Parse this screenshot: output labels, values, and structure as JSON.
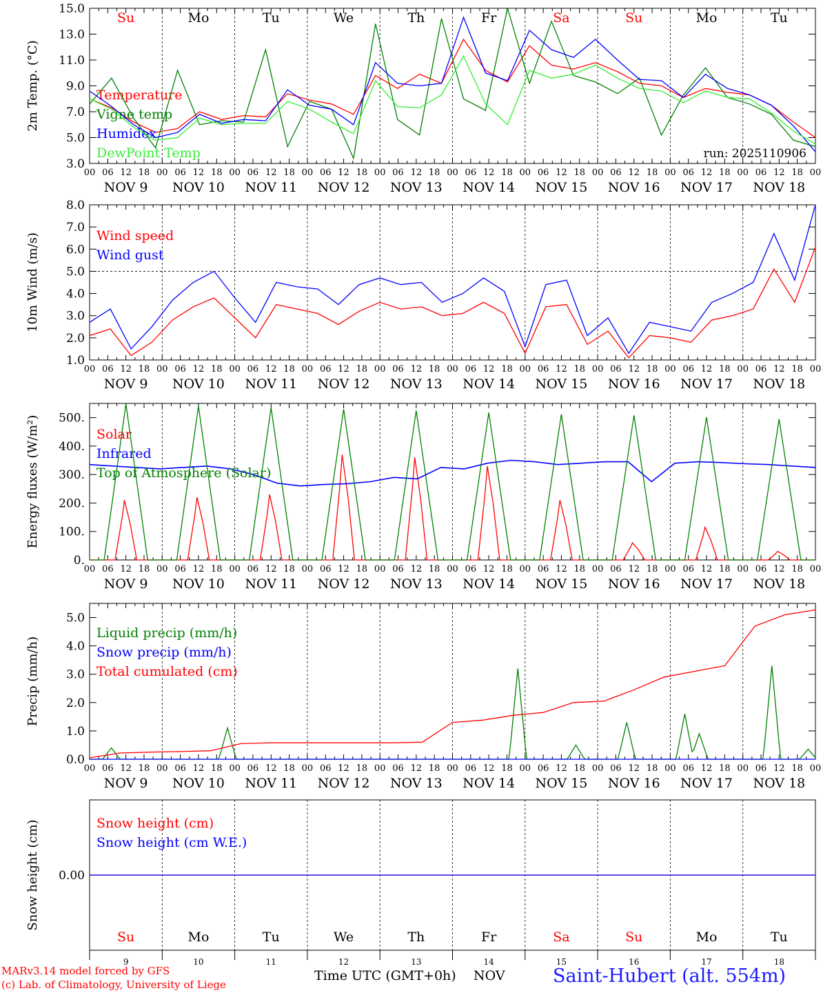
{
  "chart_data": {
    "type": "line",
    "days": [
      "NOV  9",
      "NOV 10",
      "NOV 11",
      "NOV 12",
      "NOV 13",
      "NOV 14",
      "NOV 15",
      "NOV 16",
      "NOV 17",
      "NOV 18"
    ],
    "day_numbers": [
      "9",
      "10",
      "11",
      "12",
      "13",
      "14",
      "15",
      "16",
      "17",
      "18"
    ],
    "weekdays": [
      "Su",
      "Mo",
      "Tu",
      "We",
      "Th",
      "Fr",
      "Sa",
      "Su",
      "Mo",
      "Tu"
    ],
    "weekend_color": "#ff0000",
    "hour_ticks": [
      "00",
      "06",
      "12",
      "18"
    ],
    "run": "run: 2025110906",
    "x_title": "Time UTC (GMT+0h)",
    "x_month": "NOV",
    "credit_line1": "MARv3.14 model forced by GFS",
    "credit_line2": "(c) Lab. of Climatology, University of Liege",
    "station": "Saint-Hubert (alt. 554m)",
    "panels": [
      {
        "id": "temp",
        "ylabel": "2m Temp. (°C)",
        "ylim": [
          3,
          15
        ],
        "yticks": [
          "3.0",
          "5.0",
          "7.0",
          "9.0",
          "11.0",
          "13.0",
          "15.0"
        ],
        "series": [
          {
            "name": "Temperature",
            "color": "#ff0000",
            "values": [
              8.0,
              7.3,
              6.2,
              5.4,
              5.7,
              7.0,
              6.4,
              6.7,
              6.6,
              8.4,
              7.9,
              7.6,
              6.8,
              9.8,
              8.8,
              9.9,
              9.2,
              12.6,
              10.2,
              9.3,
              12.1,
              10.6,
              10.3,
              10.8,
              10.1,
              9.2,
              9.0,
              8.1,
              8.8,
              8.5,
              8.3,
              7.5,
              6.2,
              5.0
            ]
          },
          {
            "name": "Vigne temp",
            "color": "#008000",
            "values": [
              7.6,
              9.6,
              6.5,
              4.2,
              10.2,
              6.0,
              6.3,
              6.2,
              11.8,
              4.3,
              7.8,
              7.2,
              3.4,
              13.8,
              6.4,
              5.2,
              14.2,
              8.0,
              7.1,
              15.0,
              9.2,
              14.0,
              9.8,
              9.3,
              8.4,
              9.6,
              5.2,
              8.3,
              10.4,
              8.1,
              7.6,
              6.8,
              4.8,
              4.3
            ]
          },
          {
            "name": "Humidex",
            "color": "#0000ff",
            "values": [
              8.6,
              7.4,
              6.0,
              5.0,
              5.4,
              6.8,
              6.1,
              6.4,
              6.3,
              8.7,
              7.5,
              7.2,
              6.0,
              10.8,
              9.2,
              9.0,
              9.2,
              14.3,
              10.0,
              9.4,
              13.3,
              11.8,
              11.2,
              12.6,
              11.0,
              9.5,
              9.4,
              8.1,
              9.9,
              8.8,
              8.3,
              7.5,
              5.9,
              3.9
            ]
          },
          {
            "name": "DewPoint Temp",
            "color": "#33ee33",
            "values": [
              8.0,
              7.2,
              5.8,
              4.8,
              5.0,
              6.5,
              6.0,
              6.1,
              6.1,
              7.8,
              7.2,
              6.2,
              5.3,
              9.4,
              7.4,
              7.3,
              8.3,
              11.3,
              7.6,
              6.0,
              10.2,
              9.6,
              9.9,
              10.6,
              9.6,
              8.8,
              8.6,
              7.7,
              8.6,
              8.1,
              8.0,
              6.9,
              5.5,
              4.5
            ]
          }
        ]
      },
      {
        "id": "wind",
        "ylabel": "10m Wind (m/s)",
        "ylim": [
          1,
          8
        ],
        "yticks": [
          "1.0",
          "2.0",
          "3.0",
          "4.0",
          "5.0",
          "6.0",
          "7.0",
          "8.0"
        ],
        "series": [
          {
            "name": "Wind speed",
            "color": "#ff0000",
            "values": [
              2.1,
              2.4,
              1.2,
              1.8,
              2.8,
              3.4,
              3.8,
              2.9,
              2.0,
              3.5,
              3.3,
              3.1,
              2.6,
              3.2,
              3.6,
              3.3,
              3.4,
              3.0,
              3.1,
              3.6,
              3.1,
              1.3,
              3.4,
              3.5,
              1.7,
              2.3,
              1.1,
              2.1,
              2.0,
              1.8,
              2.8,
              3.0,
              3.3,
              5.1,
              3.6,
              6.1
            ]
          },
          {
            "name": "Wind gust",
            "color": "#0000ff",
            "values": [
              2.7,
              3.3,
              1.5,
              2.5,
              3.7,
              4.5,
              5.0,
              3.8,
              2.7,
              4.5,
              4.3,
              4.2,
              3.5,
              4.4,
              4.7,
              4.4,
              4.5,
              3.6,
              4.0,
              4.7,
              4.1,
              1.6,
              4.4,
              4.6,
              2.1,
              2.9,
              1.3,
              2.7,
              2.5,
              2.3,
              3.6,
              4.0,
              4.5,
              6.7,
              4.6,
              8.0
            ]
          }
        ]
      },
      {
        "id": "energy",
        "ylabel": "Energy fluxes (W/m²)",
        "ylim": [
          0,
          550
        ],
        "yticks": [
          "0.",
          "100.",
          "200.",
          "300.",
          "400.",
          "500."
        ],
        "series": [
          {
            "name": "Solar",
            "color": "#ff0000",
            "day_peaks": [
              210,
              220,
              230,
              370,
              360,
              330,
              210,
              60,
              115,
              30
            ]
          },
          {
            "name": "Infrared",
            "color": "#0000ff",
            "values": [
              335,
              330,
              325,
              320,
              325,
              330,
              320,
              300,
              270,
              260,
              265,
              268,
              275,
              290,
              285,
              325,
              320,
              340,
              350,
              345,
              335,
              340,
              345,
              345,
              275,
              340,
              345,
              342,
              338,
              335,
              330,
              325
            ]
          },
          {
            "name": "Top of Atmosphere (Solar)",
            "color": "#008000",
            "day_peaks": [
              548,
              540,
              535,
              530,
              525,
              518,
              512,
              508,
              502,
              495
            ]
          }
        ]
      },
      {
        "id": "precip",
        "ylabel": "Precip (mm/h)",
        "ylim": [
          0,
          5.5
        ],
        "yticks": [
          "0.0",
          "1.0",
          "2.0",
          "3.0",
          "4.0",
          "5.0"
        ],
        "series": [
          {
            "name": "Liquid precip (mm/h)",
            "color": "#008000",
            "peaks": [
              [
                0.3,
                0.4
              ],
              [
                1.9,
                1.1
              ],
              [
                5.9,
                3.2
              ],
              [
                6.7,
                0.5
              ],
              [
                7.4,
                1.3
              ],
              [
                8.2,
                1.6
              ],
              [
                8.4,
                0.9
              ],
              [
                9.4,
                3.3
              ],
              [
                9.9,
                0.35
              ]
            ]
          },
          {
            "name": "Snow precip (mm/h)",
            "color": "#0000ff",
            "values": [
              0.0
            ]
          },
          {
            "name": "Total cumulated (cm)",
            "color": "#ff0000",
            "values": [
              0.05,
              0.22,
              0.25,
              0.27,
              0.3,
              0.55,
              0.58,
              0.58,
              0.58,
              0.58,
              0.58,
              0.6,
              1.3,
              1.38,
              1.55,
              1.65,
              2.0,
              2.05,
              2.45,
              2.9,
              3.1,
              3.3,
              4.7,
              5.1,
              5.27
            ]
          }
        ]
      },
      {
        "id": "snow",
        "ylabel": "Snow height (cm)",
        "ylim": [
          -1,
          1
        ],
        "yticks": [
          "0.00"
        ],
        "series": [
          {
            "name": "Snow height (cm)",
            "color": "#ff0000",
            "values": [
              0.0
            ]
          },
          {
            "name": "Snow height (cm W.E.)",
            "color": "#0000ff",
            "values": [
              0.0
            ]
          }
        ]
      }
    ]
  }
}
